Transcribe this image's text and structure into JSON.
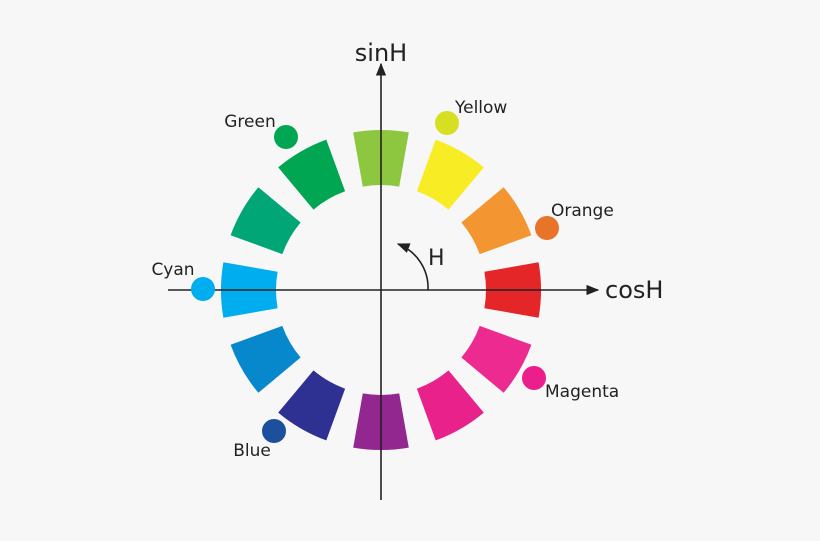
{
  "axes": {
    "vertical": "sinH",
    "horizontal": "cosH",
    "angle": "H"
  },
  "labels": [
    "Green",
    "Yellow",
    "Orange",
    "Cyan",
    "Magenta",
    "Blue"
  ]
}
